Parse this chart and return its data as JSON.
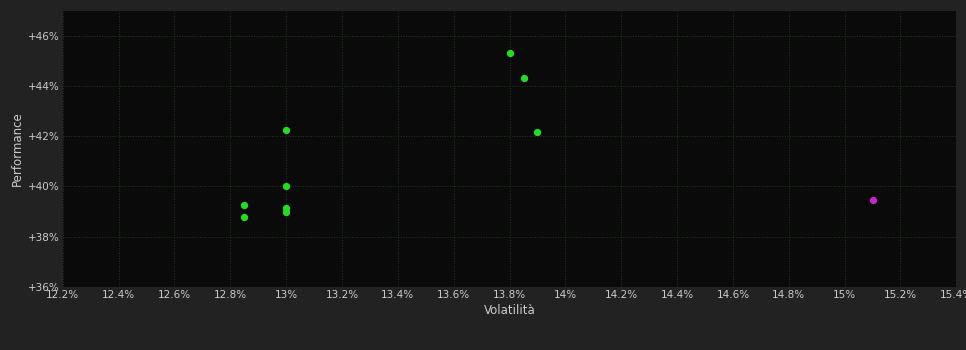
{
  "background_color": "#222222",
  "plot_bg_color": "#0a0a0a",
  "grid_color": "#1a3a1a",
  "tick_color": "#cccccc",
  "xlabel": "Volatilità",
  "ylabel": "Performance",
  "xlim": [
    0.122,
    0.154
  ],
  "ylim": [
    0.36,
    0.47
  ],
  "green_points": [
    [
      0.1285,
      0.3925
    ],
    [
      0.1285,
      0.388
    ],
    [
      0.13,
      0.4225
    ],
    [
      0.13,
      0.4
    ],
    [
      0.13,
      0.3915
    ],
    [
      0.13,
      0.39
    ],
    [
      0.138,
      0.453
    ],
    [
      0.1385,
      0.443
    ],
    [
      0.139,
      0.4215
    ]
  ],
  "magenta_points": [
    [
      0.151,
      0.3945
    ]
  ],
  "green_color": "#22dd22",
  "magenta_color": "#cc22cc",
  "point_size": 18,
  "xticks": [
    0.122,
    0.124,
    0.126,
    0.128,
    0.13,
    0.132,
    0.134,
    0.136,
    0.138,
    0.14,
    0.142,
    0.144,
    0.146,
    0.148,
    0.15,
    0.152,
    0.154
  ],
  "xtick_labels": [
    "12.2%",
    "12.4%",
    "12.6%",
    "12.8%",
    "13%",
    "13.2%",
    "13.4%",
    "13.6%",
    "13.8%",
    "14%",
    "14.2%",
    "14.4%",
    "14.6%",
    "14.8%",
    "15%",
    "15.2%",
    "15.4%"
  ],
  "yticks": [
    0.36,
    0.38,
    0.4,
    0.42,
    0.44,
    0.46
  ],
  "ytick_labels": [
    "+36%",
    "+38%",
    "+40%",
    "+42%",
    "+44%",
    "+46%"
  ]
}
